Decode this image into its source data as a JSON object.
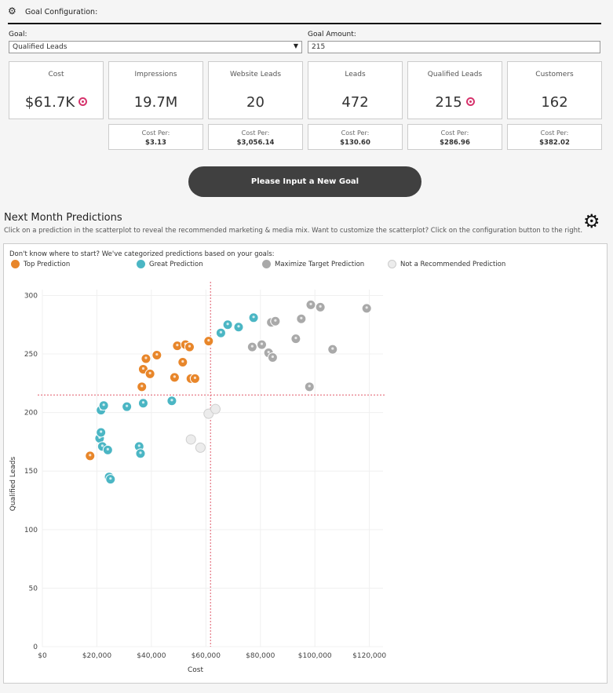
{
  "header": {
    "title": "Goal Configuration:",
    "icon": "gear-icon"
  },
  "goal": {
    "label": "Goal:",
    "selected": "Qualified Leads"
  },
  "amount": {
    "label": "Goal Amount:",
    "value": "215"
  },
  "kpis": [
    {
      "label": "Cost",
      "value": "$61.7K",
      "target": true
    },
    {
      "label": "Impressions",
      "value": "19.7M",
      "target": false
    },
    {
      "label": "Website Leads",
      "value": "20",
      "target": false
    },
    {
      "label": "Leads",
      "value": "472",
      "target": false
    },
    {
      "label": "Qualified Leads",
      "value": "215",
      "target": true
    },
    {
      "label": "Customers",
      "value": "162",
      "target": false
    }
  ],
  "cost_per": [
    {
      "label": "Cost Per:",
      "value": "$3.13"
    },
    {
      "label": "Cost Per:",
      "value": "$3,056.14"
    },
    {
      "label": "Cost Per:",
      "value": "$130.60"
    },
    {
      "label": "Cost Per:",
      "value": "$286.96"
    },
    {
      "label": "Cost Per:",
      "value": "$382.02"
    }
  ],
  "button": {
    "label": "Please Input a New Goal"
  },
  "section": {
    "title": "Next Month Predictions",
    "subtitle": "Click on a prediction in the scatterplot to reveal the recommended marketing & media mix. Want to customize the scatterplot? Click on the configuration button to the right.",
    "hint": "Don't know where to start? We've categorized predictions based on your goals:"
  },
  "legend": [
    {
      "name": "Top Prediction",
      "color": "#e8862a"
    },
    {
      "name": "Great Prediction",
      "color": "#4bb6c4"
    },
    {
      "name": "Maximize Target Prediction",
      "color": "#a9a9a9"
    },
    {
      "name": "Not a Recommended Prediction",
      "color": "#ececec"
    }
  ],
  "chart_data": {
    "type": "scatter",
    "xlabel": "Cost",
    "ylabel": "Qualified Leads",
    "xlim": [
      0,
      125000
    ],
    "ylim": [
      0,
      305
    ],
    "xticks": [
      0,
      20000,
      40000,
      60000,
      80000,
      100000,
      120000
    ],
    "xtick_labels": [
      "$0",
      "$20,000",
      "$40,000",
      "$60,000",
      "$80,000",
      "$100,000",
      "$120,000"
    ],
    "yticks": [
      0,
      50,
      100,
      150,
      200,
      250,
      300
    ],
    "ytick_labels": [
      "0",
      "50",
      "100",
      "150",
      "200",
      "250",
      "300"
    ],
    "reference": {
      "x": 61700,
      "y": 215,
      "color": "#e05a6a"
    },
    "grid": true,
    "series": [
      {
        "name": "Top Prediction",
        "color": "#e8862a",
        "points": [
          [
            17500,
            163
          ],
          [
            36500,
            222
          ],
          [
            37000,
            237
          ],
          [
            38000,
            246
          ],
          [
            39500,
            233
          ],
          [
            42000,
            249
          ],
          [
            48500,
            230
          ],
          [
            49500,
            257
          ],
          [
            51500,
            243
          ],
          [
            52500,
            258
          ],
          [
            54000,
            256
          ],
          [
            54500,
            229
          ],
          [
            56000,
            229
          ],
          [
            61000,
            261
          ]
        ]
      },
      {
        "name": "Great Prediction",
        "color": "#4bb6c4",
        "points": [
          [
            21000,
            178
          ],
          [
            21500,
            183
          ],
          [
            21500,
            202
          ],
          [
            22000,
            171
          ],
          [
            22500,
            206
          ],
          [
            24000,
            168
          ],
          [
            24500,
            145
          ],
          [
            25000,
            143
          ],
          [
            31000,
            205
          ],
          [
            35500,
            171
          ],
          [
            36000,
            165
          ],
          [
            37000,
            208
          ],
          [
            47500,
            210
          ],
          [
            65500,
            268
          ],
          [
            68000,
            275
          ],
          [
            72000,
            273
          ],
          [
            77500,
            281
          ]
        ]
      },
      {
        "name": "Maximize Target Prediction",
        "color": "#a9a9a9",
        "points": [
          [
            77000,
            256
          ],
          [
            80500,
            258
          ],
          [
            83000,
            251
          ],
          [
            84000,
            277
          ],
          [
            84500,
            247
          ],
          [
            85500,
            278
          ],
          [
            93000,
            263
          ],
          [
            95000,
            280
          ],
          [
            98000,
            222
          ],
          [
            98500,
            292
          ],
          [
            102000,
            290
          ],
          [
            106500,
            254
          ],
          [
            119000,
            289
          ]
        ]
      },
      {
        "name": "Not a Recommended Prediction",
        "color": "#ececec",
        "points": [
          [
            54500,
            177
          ],
          [
            58000,
            170
          ],
          [
            61000,
            199
          ],
          [
            63500,
            203
          ]
        ]
      }
    ]
  }
}
